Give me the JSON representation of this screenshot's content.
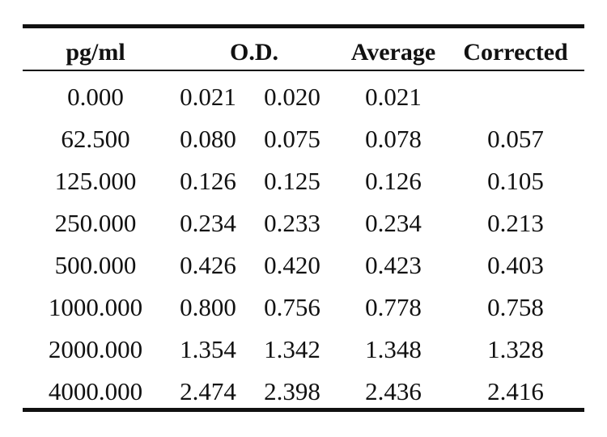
{
  "table": {
    "headers": {
      "concentration": "pg/ml",
      "od": "O.D.",
      "average": "Average",
      "corrected": "Corrected"
    },
    "rows": [
      {
        "conc": "0.000",
        "od1": "0.021",
        "od2": "0.020",
        "avg": "0.021",
        "corr": ""
      },
      {
        "conc": "62.500",
        "od1": "0.080",
        "od2": "0.075",
        "avg": "0.078",
        "corr": "0.057"
      },
      {
        "conc": "125.000",
        "od1": "0.126",
        "od2": "0.125",
        "avg": "0.126",
        "corr": "0.105"
      },
      {
        "conc": "250.000",
        "od1": "0.234",
        "od2": "0.233",
        "avg": "0.234",
        "corr": "0.213"
      },
      {
        "conc": "500.000",
        "od1": "0.426",
        "od2": "0.420",
        "avg": "0.423",
        "corr": "0.403"
      },
      {
        "conc": "1000.000",
        "od1": "0.800",
        "od2": "0.756",
        "avg": "0.778",
        "corr": "0.758"
      },
      {
        "conc": "2000.000",
        "od1": "1.354",
        "od2": "1.342",
        "avg": "1.348",
        "corr": "1.328"
      },
      {
        "conc": "4000.000",
        "od1": "2.474",
        "od2": "2.398",
        "avg": "2.436",
        "corr": "2.416"
      }
    ]
  }
}
